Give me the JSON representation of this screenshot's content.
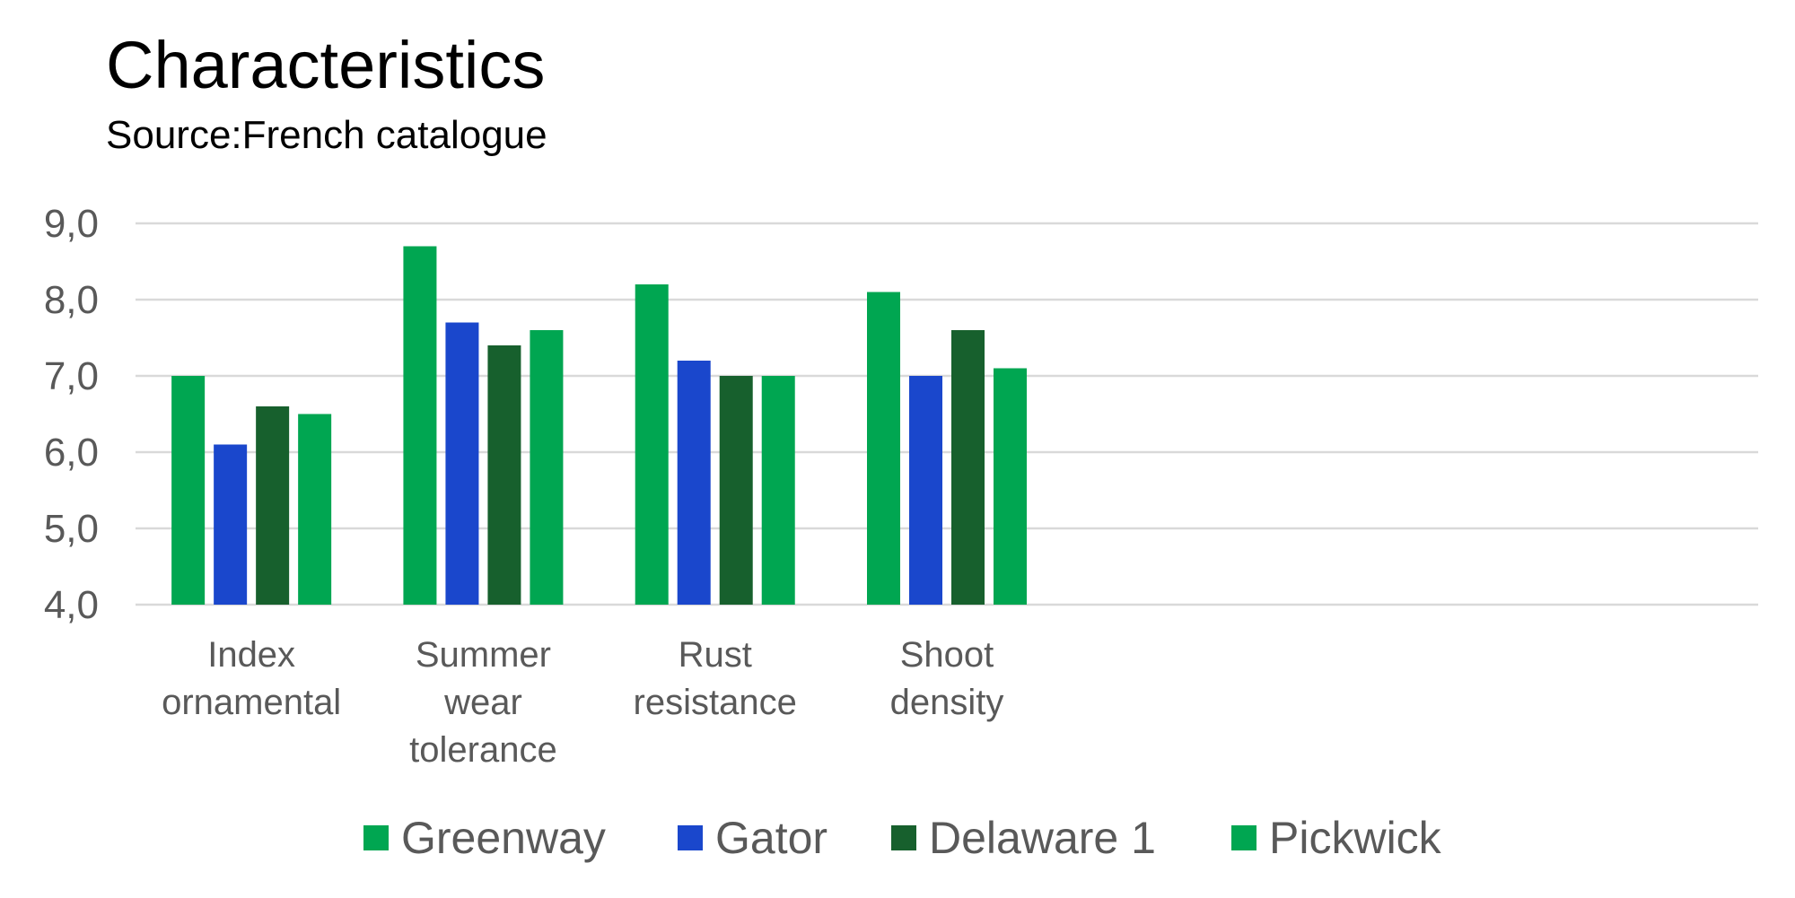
{
  "chart_data": {
    "type": "bar",
    "title": "Characteristics",
    "subtitle": "Source:French catalogue",
    "categories": [
      [
        "Index",
        "ornamental"
      ],
      [
        "Summer",
        "wear",
        "tolerance"
      ],
      [
        "Rust",
        "resistance"
      ],
      [
        "Shoot",
        "density"
      ]
    ],
    "slots": 7,
    "series": [
      {
        "name": "Greenway",
        "color": "#00A651",
        "values": [
          7.0,
          8.7,
          8.2,
          8.1
        ]
      },
      {
        "name": "Gator",
        "color": "#1A47CC",
        "values": [
          6.1,
          7.7,
          7.2,
          7.0
        ]
      },
      {
        "name": "Delaware 1",
        "color": "#17602D",
        "values": [
          6.6,
          7.4,
          7.0,
          7.6
        ]
      },
      {
        "name": "Pickwick",
        "color": "#00A651",
        "values": [
          6.5,
          7.6,
          7.0,
          7.1
        ]
      }
    ],
    "ylim": [
      4.0,
      9.0
    ],
    "yticks": [
      "4,0",
      "5,0",
      "6,0",
      "7,0",
      "8,0",
      "9,0"
    ],
    "grid": true,
    "legend": "bottom",
    "xlabel": "",
    "ylabel": ""
  }
}
